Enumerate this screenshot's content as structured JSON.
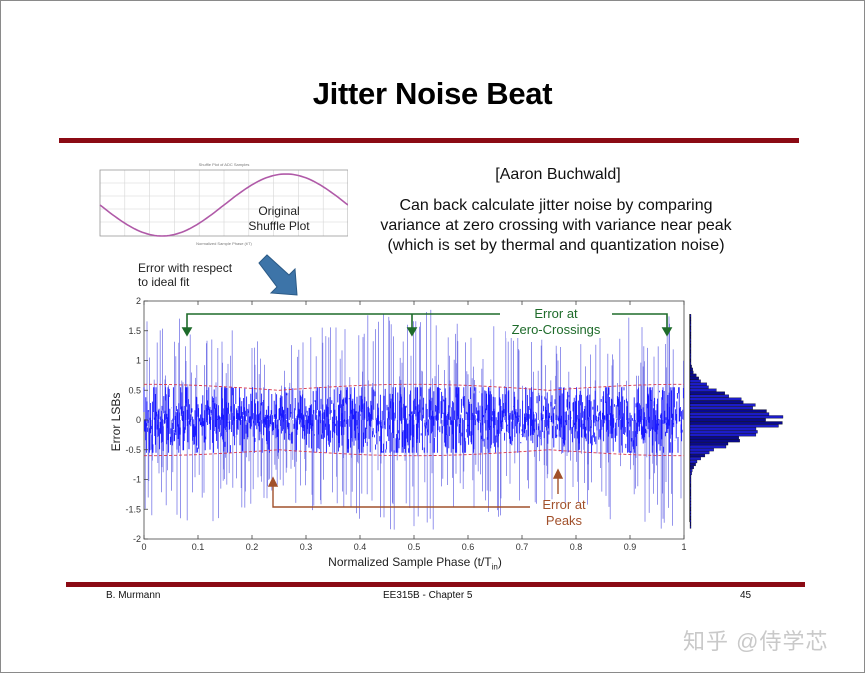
{
  "slide": {
    "title": "Jitter Noise Beat",
    "citation": "[Aaron Buchwald]",
    "description_lines": [
      "Can back calculate jitter noise by comparing",
      "variance at zero crossing with variance near peak",
      "(which is set by thermal and quantization noise)"
    ],
    "mini_plot_label_lines": [
      "Original",
      "Shuffle Plot"
    ],
    "mini_plot_title": "Shuffle Plot of ADC Samples",
    "mini_plot_xlabel": "Normalized Sample Phase (t/T)",
    "mini_plot_ylabel": "Amplitude (LSB)",
    "error_fit_lines": [
      "Error with respect",
      "to ideal fit"
    ],
    "annotation_zero_lines": [
      "Error at",
      "Zero-Crossings"
    ],
    "annotation_peaks_lines": [
      "Error at",
      "Peaks"
    ],
    "footer": {
      "author": "B. Murmann",
      "course": "EE315B - Chapter 5",
      "page": "45"
    },
    "watermark": "知乎 @侍学芯",
    "colors": {
      "accent_rule": "#8b0a14",
      "noise_blue": "#1a1aff",
      "noise_light": "#7a7ae8",
      "envelope_red": "#d9344a",
      "annotation_green": "#1e6b2a",
      "annotation_brown": "#a1502b",
      "arrow_blue": "#3d74a8"
    }
  },
  "chart_data": [
    {
      "type": "line",
      "title": "Shuffle Plot of ADC Samples",
      "xlabel": "Normalized Sample Phase (t/T)",
      "ylabel": "Amplitude (LSB)",
      "x": [
        0,
        0.1,
        0.2,
        0.25,
        0.3,
        0.4,
        0.5,
        0.6,
        0.7,
        0.75,
        0.8,
        0.9,
        1.0
      ],
      "values": [
        128,
        53,
        7,
        0,
        7,
        53,
        128,
        203,
        249,
        256,
        249,
        203,
        128
      ],
      "xlim": [
        0,
        1
      ],
      "ylim": [
        0,
        256
      ],
      "yticks": [
        0,
        50,
        100,
        150,
        200,
        250
      ],
      "xticks": [
        0,
        0.1,
        0.2,
        0.3,
        0.4,
        0.5,
        0.6,
        0.7,
        0.8,
        0.9,
        1
      ],
      "grid": true
    },
    {
      "type": "line",
      "title": "",
      "xlabel": "Normalized Sample Phase (t/T_in)",
      "ylabel": "Error LSBs",
      "xlim": [
        0,
        1
      ],
      "ylim": [
        -2,
        2
      ],
      "xticks": [
        "0",
        "0.1",
        "0.2",
        "0.3",
        "0.4",
        "0.5",
        "0.6",
        "0.7",
        "0.8",
        "0.9",
        "1"
      ],
      "yticks": [
        "2",
        "1.5",
        "1",
        "0.5",
        "0",
        "-0.5",
        "-1",
        "-1.5",
        "-2"
      ],
      "series": [
        {
          "name": "Error (noise samples)",
          "description": "dense noise, std dev ~0.35 LSB at zero-crossings (x=0, 0.5, 1) and ~0.25 LSB at peaks (x=0.25, 0.75); outliers to about +/-1.8",
          "sigma_zero_crossing": 0.35,
          "sigma_peak": 0.25
        },
        {
          "name": "Envelope (red dashed)",
          "description": "red dashed envelope around +/-0.6 LSB at zero-crossings narrowing toward peaks"
        }
      ],
      "annotations": [
        {
          "text": "Error at Zero-Crossings",
          "x": [
            0.08,
            0.5,
            0.97
          ],
          "y": 1.5
        },
        {
          "text": "Error at Peaks",
          "x": [
            0.24,
            0.77
          ],
          "y": -1.05
        }
      ],
      "grid": false
    },
    {
      "type": "bar",
      "title": "Histogram of error (horizontal)",
      "orientation": "horizontal",
      "ylim": [
        -2,
        2
      ],
      "description": "approximately Gaussian histogram centered at 0, peak near 0"
    }
  ]
}
